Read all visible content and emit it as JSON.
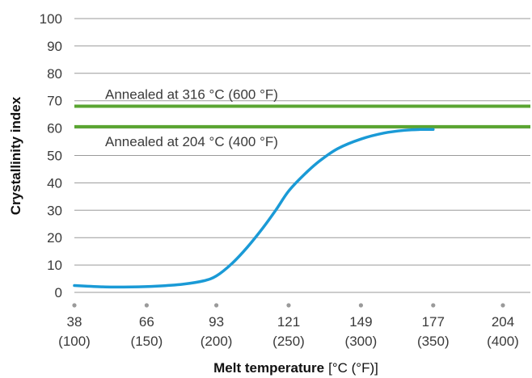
{
  "chart_data": {
    "type": "line",
    "xlabel_bold": "Melt temperature",
    "xlabel_unit": "[°C (°F)]",
    "ylabel": "Crystallinity index",
    "ylim": [
      0,
      100
    ],
    "yticks": [
      0,
      10,
      20,
      30,
      40,
      50,
      60,
      70,
      80,
      90,
      100
    ],
    "xlim": [
      38,
      204
    ],
    "xticks": [
      {
        "value": 38,
        "celsius": "38",
        "fahrenheit": "(100)"
      },
      {
        "value": 66,
        "celsius": "66",
        "fahrenheit": "(150)"
      },
      {
        "value": 93,
        "celsius": "93",
        "fahrenheit": "(200)"
      },
      {
        "value": 121,
        "celsius": "121",
        "fahrenheit": "(250)"
      },
      {
        "value": 149,
        "celsius": "149",
        "fahrenheit": "(300)"
      },
      {
        "value": 177,
        "celsius": "177",
        "fahrenheit": "(350)"
      },
      {
        "value": 204,
        "celsius": "204",
        "fahrenheit": "(400)"
      }
    ],
    "grid": "horizontal",
    "series": [
      {
        "color": "#1a9ad6",
        "x": [
          38,
          50,
          60,
          70,
          80,
          88,
          93,
          99,
          105,
          111,
          116,
          121,
          127,
          133,
          140,
          149,
          158,
          166,
          172,
          177
        ],
        "y": [
          2.5,
          2.0,
          2.0,
          2.3,
          3.0,
          4.2,
          6.0,
          10.5,
          16.5,
          23.5,
          30.0,
          37.0,
          43.0,
          48.0,
          52.5,
          56.0,
          58.2,
          59.2,
          59.5,
          59.5
        ]
      }
    ],
    "reference_lines": [
      {
        "label": "Annealed at 316 °C (600 °F)",
        "y": 68,
        "color": "#5aa531",
        "label_position": "above"
      },
      {
        "label": "Annealed at 204 °C (400 °F)",
        "y": 60.5,
        "color": "#5aa531",
        "label_position": "below"
      }
    ]
  }
}
